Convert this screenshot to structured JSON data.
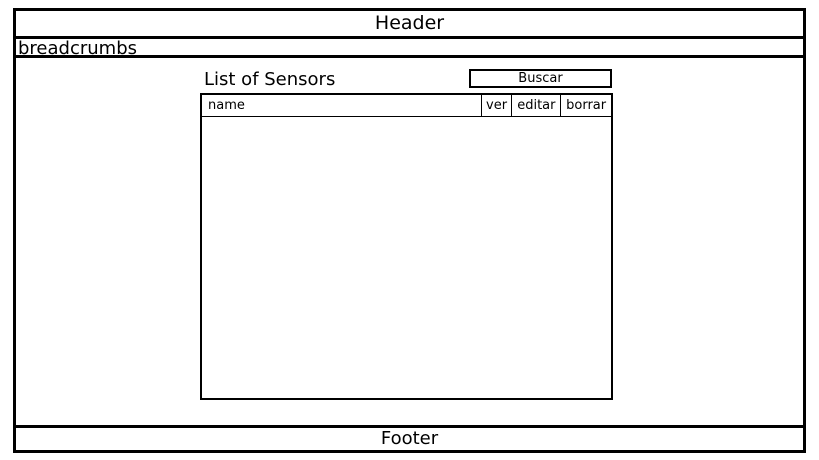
{
  "header": {
    "title": "Header"
  },
  "breadcrumbs": {
    "label": "breadcrumbs"
  },
  "main": {
    "title": "List of Sensors",
    "search_button": "Buscar",
    "table": {
      "columns": [
        "name",
        "ver",
        "editar",
        "borrar"
      ],
      "rows": []
    }
  },
  "footer": {
    "title": "Footer"
  }
}
